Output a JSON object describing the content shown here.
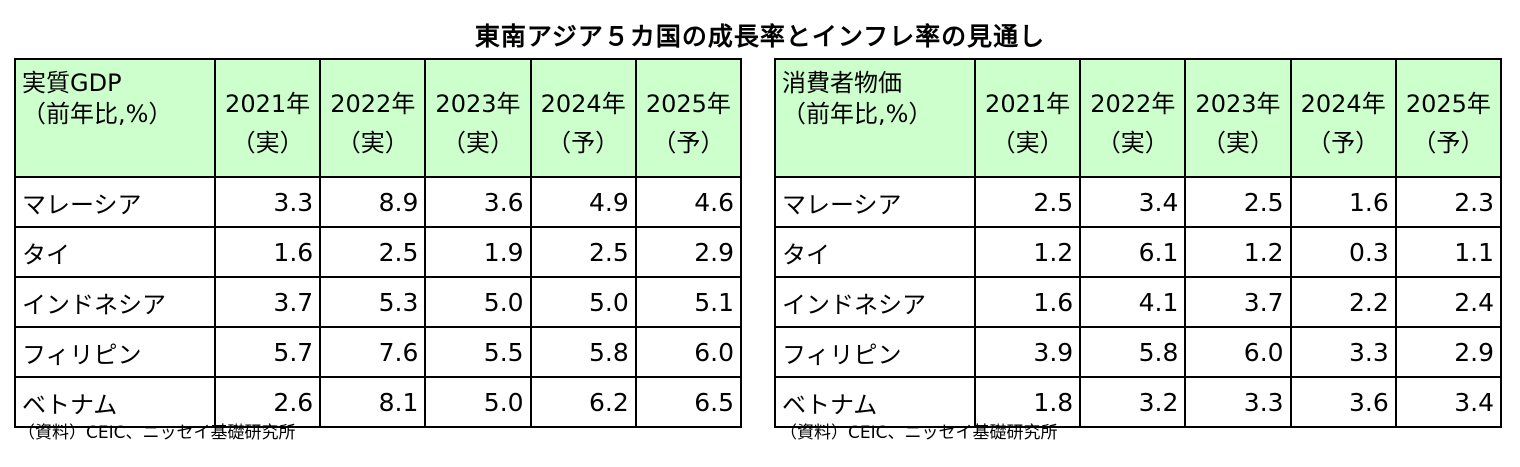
{
  "title": "東南アジア５カ国の成長率とインフレ率の見通し",
  "tables": [
    {
      "header_label": [
        "実質GDP",
        "（前年比,%）"
      ],
      "columns": [
        {
          "year": "2021年",
          "kind": "（実）"
        },
        {
          "year": "2022年",
          "kind": "（実）"
        },
        {
          "year": "2023年",
          "kind": "（実）"
        },
        {
          "year": "2024年",
          "kind": "（予）"
        },
        {
          "year": "2025年",
          "kind": "（予）"
        }
      ],
      "rows": [
        {
          "name": "マレーシア",
          "values": [
            "3.3",
            "8.9",
            "3.6",
            "4.9",
            "4.6"
          ]
        },
        {
          "name": "タイ",
          "values": [
            "1.6",
            "2.5",
            "1.9",
            "2.5",
            "2.9"
          ]
        },
        {
          "name": "インドネシア",
          "values": [
            "3.7",
            "5.3",
            "5.0",
            "5.0",
            "5.1"
          ]
        },
        {
          "name": "フィリピン",
          "values": [
            "5.7",
            "7.6",
            "5.5",
            "5.8",
            "6.0"
          ]
        },
        {
          "name": "ベトナム",
          "values": [
            "2.6",
            "8.1",
            "5.0",
            "6.2",
            "6.5"
          ]
        }
      ],
      "source": "（資料）CEIC、ニッセイ基礎研究所"
    },
    {
      "header_label": [
        "消費者物価",
        "（前年比,%）"
      ],
      "columns": [
        {
          "year": "2021年",
          "kind": "（実）"
        },
        {
          "year": "2022年",
          "kind": "（実）"
        },
        {
          "year": "2023年",
          "kind": "（実）"
        },
        {
          "year": "2024年",
          "kind": "（予）"
        },
        {
          "year": "2025年",
          "kind": "（予）"
        }
      ],
      "rows": [
        {
          "name": "マレーシア",
          "values": [
            "2.5",
            "3.4",
            "2.5",
            "1.6",
            "2.3"
          ]
        },
        {
          "name": "タイ",
          "values": [
            "1.2",
            "6.1",
            "1.2",
            "0.3",
            "1.1"
          ]
        },
        {
          "name": "インドネシア",
          "values": [
            "1.6",
            "4.1",
            "3.7",
            "2.2",
            "2.4"
          ]
        },
        {
          "name": "フィリピン",
          "values": [
            "3.9",
            "5.8",
            "6.0",
            "3.3",
            "2.9"
          ]
        },
        {
          "name": "ベトナム",
          "values": [
            "1.8",
            "3.2",
            "3.3",
            "3.6",
            "3.4"
          ]
        }
      ],
      "source": "（資料）CEIC、ニッセイ基礎研究所"
    }
  ],
  "chart_data": [
    {
      "type": "table",
      "title": "東南アジア５カ国の成長率とインフレ率の見通し",
      "name": "実質GDP（前年比,%）",
      "columns": [
        "2021年（実）",
        "2022年（実）",
        "2023年（実）",
        "2024年（予）",
        "2025年（予）"
      ],
      "rows": [
        "マレーシア",
        "タイ",
        "インドネシア",
        "フィリピン",
        "ベトナム"
      ],
      "values": [
        [
          3.3,
          8.9,
          3.6,
          4.9,
          4.6
        ],
        [
          1.6,
          2.5,
          1.9,
          2.5,
          2.9
        ],
        [
          3.7,
          5.3,
          5.0,
          5.0,
          5.1
        ],
        [
          5.7,
          7.6,
          5.5,
          5.8,
          6.0
        ],
        [
          2.6,
          8.1,
          5.0,
          6.2,
          6.5
        ]
      ]
    },
    {
      "type": "table",
      "title": "東南アジア５カ国の成長率とインフレ率の見通し",
      "name": "消費者物価（前年比,%）",
      "columns": [
        "2021年（実）",
        "2022年（実）",
        "2023年（実）",
        "2024年（予）",
        "2025年（予）"
      ],
      "rows": [
        "マレーシア",
        "タイ",
        "インドネシア",
        "フィリピン",
        "ベトナム"
      ],
      "values": [
        [
          2.5,
          3.4,
          2.5,
          1.6,
          2.3
        ],
        [
          1.2,
          6.1,
          1.2,
          0.3,
          1.1
        ],
        [
          1.6,
          4.1,
          3.7,
          2.2,
          2.4
        ],
        [
          3.9,
          5.8,
          6.0,
          3.3,
          2.9
        ],
        [
          1.8,
          3.2,
          3.3,
          3.6,
          3.4
        ]
      ]
    }
  ]
}
